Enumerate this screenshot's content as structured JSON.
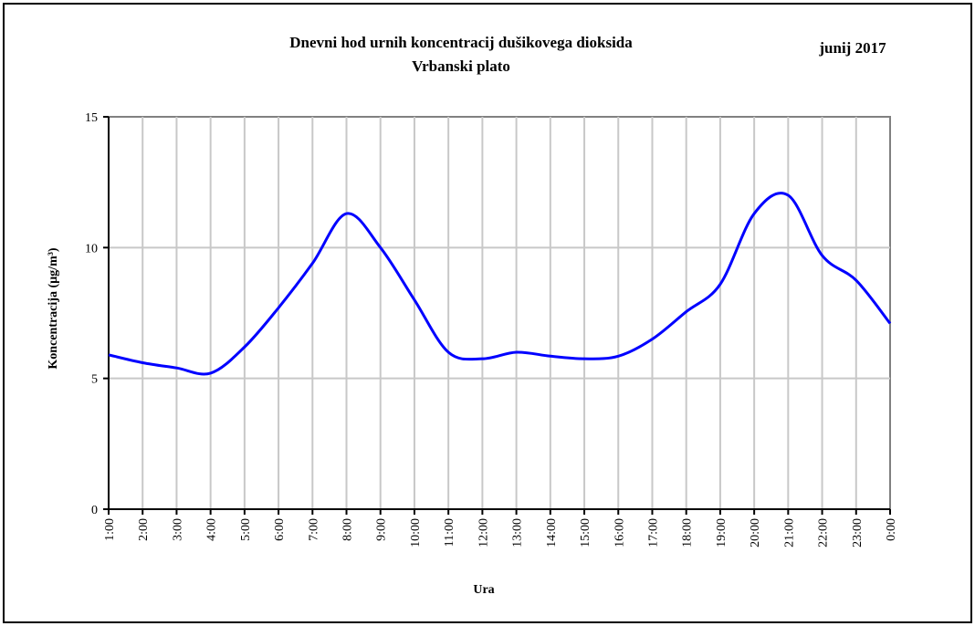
{
  "chart_data": {
    "type": "line",
    "title": [
      "Dnevni hod urnih koncentracij dušikovega dioksida",
      "Vrbanski plato"
    ],
    "annotation": "junij 2017",
    "x_label": "Ura",
    "y_label": "Koncentracija (µg/m³)",
    "categories": [
      "1:00",
      "2:00",
      "3:00",
      "4:00",
      "5:00",
      "6:00",
      "7:00",
      "8:00",
      "9:00",
      "10:00",
      "11:00",
      "12:00",
      "13:00",
      "14:00",
      "15:00",
      "16:00",
      "17:00",
      "18:00",
      "19:00",
      "20:00",
      "21:00",
      "22:00",
      "23:00",
      "0:00"
    ],
    "series": [
      {
        "color": "#0000ff",
        "values": [
          5.9,
          5.6,
          5.4,
          5.2,
          6.2,
          7.7,
          9.4,
          11.3,
          10.0,
          8.0,
          6.0,
          5.75,
          6.0,
          5.85,
          5.75,
          5.85,
          6.5,
          7.55,
          8.6,
          11.3,
          12.0,
          9.7,
          8.75,
          7.1
        ]
      }
    ],
    "ylim": [
      0,
      15
    ],
    "yticks": [
      0,
      5,
      10,
      15
    ],
    "grid": true
  }
}
